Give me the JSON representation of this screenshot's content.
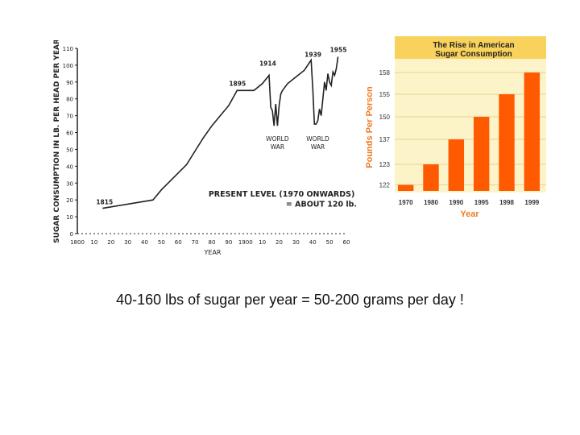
{
  "chart_data": [
    {
      "type": "line",
      "title": "",
      "xlabel": "YEAR",
      "ylabel": "SUGAR CONSUMPTION IN LB. PER HEAD PER YEAR",
      "xlim": [
        1800,
        1960
      ],
      "ylim": [
        0,
        110
      ],
      "x_tick_values": [
        1800,
        1810,
        1820,
        1830,
        1840,
        1850,
        1860,
        1870,
        1880,
        1890,
        1900,
        1910,
        1920,
        1930,
        1940,
        1950,
        1960
      ],
      "x_tick_labels": [
        "1800",
        "10",
        "20",
        "30",
        "40",
        "50",
        "60",
        "70",
        "80",
        "90",
        "1900",
        "10",
        "20",
        "30",
        "40",
        "50",
        "60"
      ],
      "y_ticks": [
        0,
        10,
        20,
        30,
        40,
        50,
        60,
        70,
        80,
        90,
        100,
        110
      ],
      "series": [
        {
          "name": "consumption",
          "x": [
            1815,
            1845,
            1850,
            1855,
            1860,
            1865,
            1870,
            1875,
            1880,
            1885,
            1890,
            1895,
            1900,
            1905,
            1910,
            1914,
            1915,
            1916,
            1917,
            1918,
            1919,
            1920,
            1921,
            1922,
            1925,
            1930,
            1935,
            1939,
            1940,
            1941,
            1942,
            1943,
            1944,
            1945,
            1946,
            1947,
            1948,
            1949,
            1950,
            1951,
            1952,
            1953,
            1954,
            1955
          ],
          "values": [
            15,
            20,
            26,
            31,
            36,
            41,
            49,
            57,
            64,
            70,
            76,
            85,
            85,
            85,
            89,
            94,
            75,
            73,
            64,
            77,
            64,
            76,
            83,
            85,
            89,
            93,
            97,
            103,
            86,
            65,
            65,
            67,
            74,
            70,
            80,
            90,
            85,
            95,
            90,
            88,
            96,
            94,
            98,
            105
          ]
        }
      ],
      "annotations": [
        {
          "text": "1815",
          "x": 1815,
          "y": 15
        },
        {
          "text": "1895",
          "x": 1895,
          "y": 85
        },
        {
          "text": "1914",
          "x": 1914,
          "y": 94
        },
        {
          "text": "1939",
          "x": 1939,
          "y": 103
        },
        {
          "text": "1955",
          "x": 1955,
          "y": 105
        },
        {
          "text": "WORLD WAR",
          "x": 1919,
          "y": 55
        },
        {
          "text": "WORLD WAR",
          "x": 1943,
          "y": 55
        },
        {
          "text": "PRESENT LEVEL (1970 ONWARDS)",
          "x": 1878,
          "y": 22
        },
        {
          "text": "= ABOUT 120 lb.",
          "x": 1924,
          "y": 16
        }
      ]
    },
    {
      "type": "bar",
      "title": "The Rise in American Sugar Consumption",
      "xlabel": "Year",
      "ylabel": "Pounds Per Person",
      "categories": [
        "1970",
        "1980",
        "1990",
        "1995",
        "1998",
        "1999"
      ],
      "values": [
        122,
        123,
        137,
        150,
        155,
        158
      ],
      "y_tick_labels": [
        "122",
        "123",
        "137",
        "150",
        "155",
        "158"
      ],
      "colors": {
        "bar": "#ff5a00",
        "panel": "#fdf3c8",
        "title_band": "#f9d25c",
        "axis_label": "#f07a24"
      }
    }
  ],
  "caption": "40-160 lbs of sugar per year =  50-200 grams per day !"
}
